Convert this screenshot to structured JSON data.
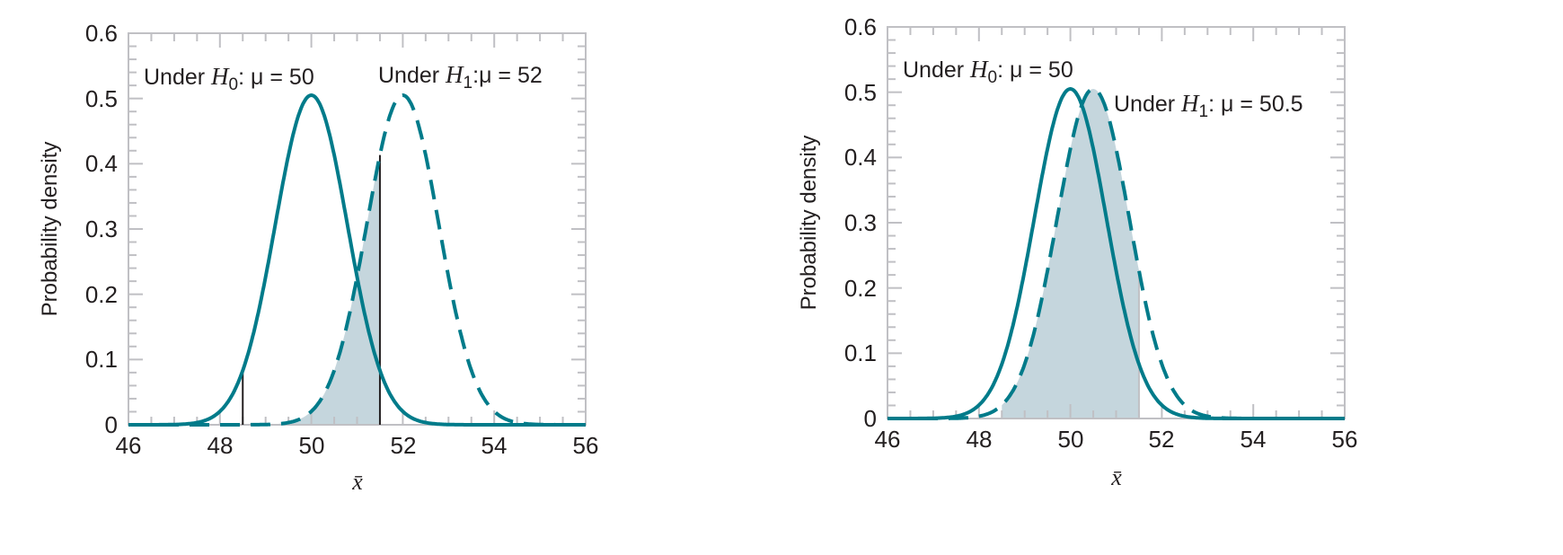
{
  "colors": {
    "curve": "#007b8a",
    "shade": "#c5d6dd",
    "axis": "#c0c0c4",
    "critical_line": "#231f20",
    "text": "#231f20"
  },
  "chart_data": [
    {
      "type": "line",
      "title": "",
      "xlabel": "x̄",
      "ylabel": "Probability density",
      "xlim": [
        46,
        56
      ],
      "ylim": [
        0,
        0.6
      ],
      "xticks": [
        46,
        48,
        50,
        52,
        54,
        56
      ],
      "yticks": [
        0,
        0.1,
        0.2,
        0.3,
        0.4,
        0.5,
        0.6
      ],
      "grid": false,
      "series": [
        {
          "name": "Under H0: μ = 50",
          "distribution": "normal",
          "mean": 50,
          "sd": 0.79,
          "style": "solid",
          "peak": 0.505
        },
        {
          "name": "Under H1: μ = 52",
          "distribution": "normal",
          "mean": 52,
          "sd": 0.79,
          "style": "dashed",
          "peak": 0.505
        }
      ],
      "critical_values": [
        48.5,
        51.5
      ],
      "shaded_region": {
        "under": "H1",
        "from": 48.5,
        "to": 51.5,
        "meaning": "beta"
      },
      "annotations": [
        {
          "text_prefix": "Under ",
          "symbol": "H",
          "subscript": "0",
          "text_suffix": ": μ = 50"
        },
        {
          "text_prefix": "Under ",
          "symbol": "H",
          "subscript": "1",
          "text_suffix": ":μ = 52"
        }
      ]
    },
    {
      "type": "line",
      "title": "",
      "xlabel": "x̄",
      "ylabel": "Probability density",
      "xlim": [
        46,
        56
      ],
      "ylim": [
        0,
        0.6
      ],
      "xticks": [
        46,
        48,
        50,
        52,
        54,
        56
      ],
      "yticks": [
        0,
        0.1,
        0.2,
        0.3,
        0.4,
        0.5,
        0.6
      ],
      "grid": false,
      "series": [
        {
          "name": "Under H0: μ = 50",
          "distribution": "normal",
          "mean": 50,
          "sd": 0.79,
          "style": "solid",
          "peak": 0.505
        },
        {
          "name": "Under H1: μ = 50.5",
          "distribution": "normal",
          "mean": 50.5,
          "sd": 0.79,
          "style": "dashed",
          "peak": 0.505
        }
      ],
      "critical_values": [
        48.5,
        51.5
      ],
      "shaded_region": {
        "under": "H1",
        "from": 48.5,
        "to": 51.5,
        "meaning": "beta"
      },
      "annotations": [
        {
          "text_prefix": "Under ",
          "symbol": "H",
          "subscript": "0",
          "text_suffix": ": μ = 50"
        },
        {
          "text_prefix": "Under ",
          "symbol": "H",
          "subscript": "1",
          "text_suffix": ": μ = 50.5"
        }
      ]
    }
  ],
  "panels": [
    {
      "ylabel": "Probability density",
      "xlabel": "x̄",
      "ytick_labels": [
        "0",
        "0.1",
        "0.2",
        "0.3",
        "0.4",
        "0.5",
        "0.6"
      ],
      "xtick_labels": [
        "46",
        "48",
        "50",
        "52",
        "54",
        "56"
      ],
      "label_h0": {
        "prefix": "Under ",
        "H": "H",
        "sub": "0",
        "suffix": ": μ = 50"
      },
      "label_h1": {
        "prefix": "Under ",
        "H": "H",
        "sub": "1",
        "suffix": ":μ = 52"
      }
    },
    {
      "ylabel": "Probability density",
      "xlabel": "x̄",
      "ytick_labels": [
        "0",
        "0.1",
        "0.2",
        "0.3",
        "0.4",
        "0.5",
        "0.6"
      ],
      "xtick_labels": [
        "46",
        "48",
        "50",
        "52",
        "54",
        "56"
      ],
      "label_h0": {
        "prefix": "Under ",
        "H": "H",
        "sub": "0",
        "suffix": ": μ = 50"
      },
      "label_h1": {
        "prefix": "Under ",
        "H": "H",
        "sub": "1",
        "suffix": ": μ = 50.5"
      }
    }
  ]
}
